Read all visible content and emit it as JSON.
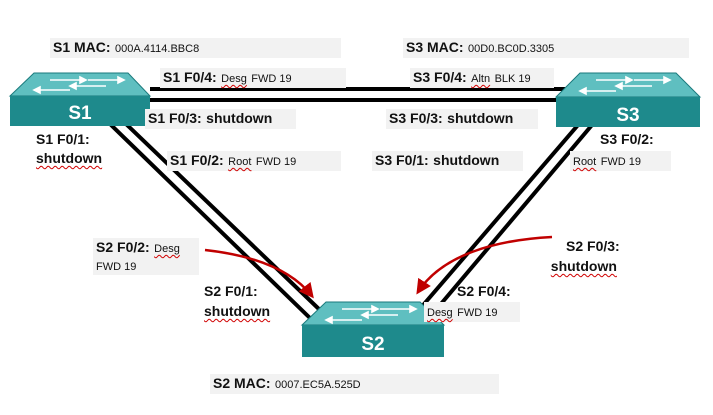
{
  "switches": {
    "s1": {
      "name": "S1",
      "mac_label": "S1 MAC:",
      "mac": "000A.4114.BBC8"
    },
    "s2": {
      "name": "S2",
      "mac_label": "S2 MAC:",
      "mac": "0007.EC5A.525D"
    },
    "s3": {
      "name": "S3",
      "mac_label": "S3 MAC:",
      "mac": "00D0.BC0D.3305"
    }
  },
  "ports": {
    "s1_f04": {
      "name": "S1 F0/4:",
      "role": "Desg",
      "state": "FWD 19"
    },
    "s1_f03": {
      "name": "S1 F0/3:",
      "state": "shutdown"
    },
    "s1_f01": {
      "name": "S1 F0/1:",
      "state": "shutdown"
    },
    "s1_f02": {
      "name": "S1 F0/2:",
      "role": "Root",
      "state": "FWD 19"
    },
    "s3_f04": {
      "name": "S3 F0/4:",
      "role": "Altn",
      "state": "BLK 19"
    },
    "s3_f03": {
      "name": "S3 F0/3:",
      "state": "shutdown"
    },
    "s3_f01": {
      "name": "S3 F0/1:",
      "state": "shutdown"
    },
    "s3_f02": {
      "name": "S3 F0/2:",
      "role": "Root",
      "state": "FWD 19"
    },
    "s2_f02": {
      "name": "S2 F0/2:",
      "role": "Desg",
      "state": "FWD 19"
    },
    "s2_f01": {
      "name": "S2 F0/1:",
      "state": "shutdown"
    },
    "s2_f04": {
      "name": "S2 F0/4:",
      "role": "Desg",
      "state": "FWD 19"
    },
    "s2_f03": {
      "name": "S2 F0/3:",
      "state": "shutdown"
    }
  },
  "colors": {
    "switch_top": "#5fbfc0",
    "switch_front": "#1e8a8c",
    "switch_side": "#14686a",
    "link": "#000000",
    "arrow": "#c00000"
  },
  "icons": [
    "switch-icon",
    "bidirectional-arrows-icon"
  ]
}
